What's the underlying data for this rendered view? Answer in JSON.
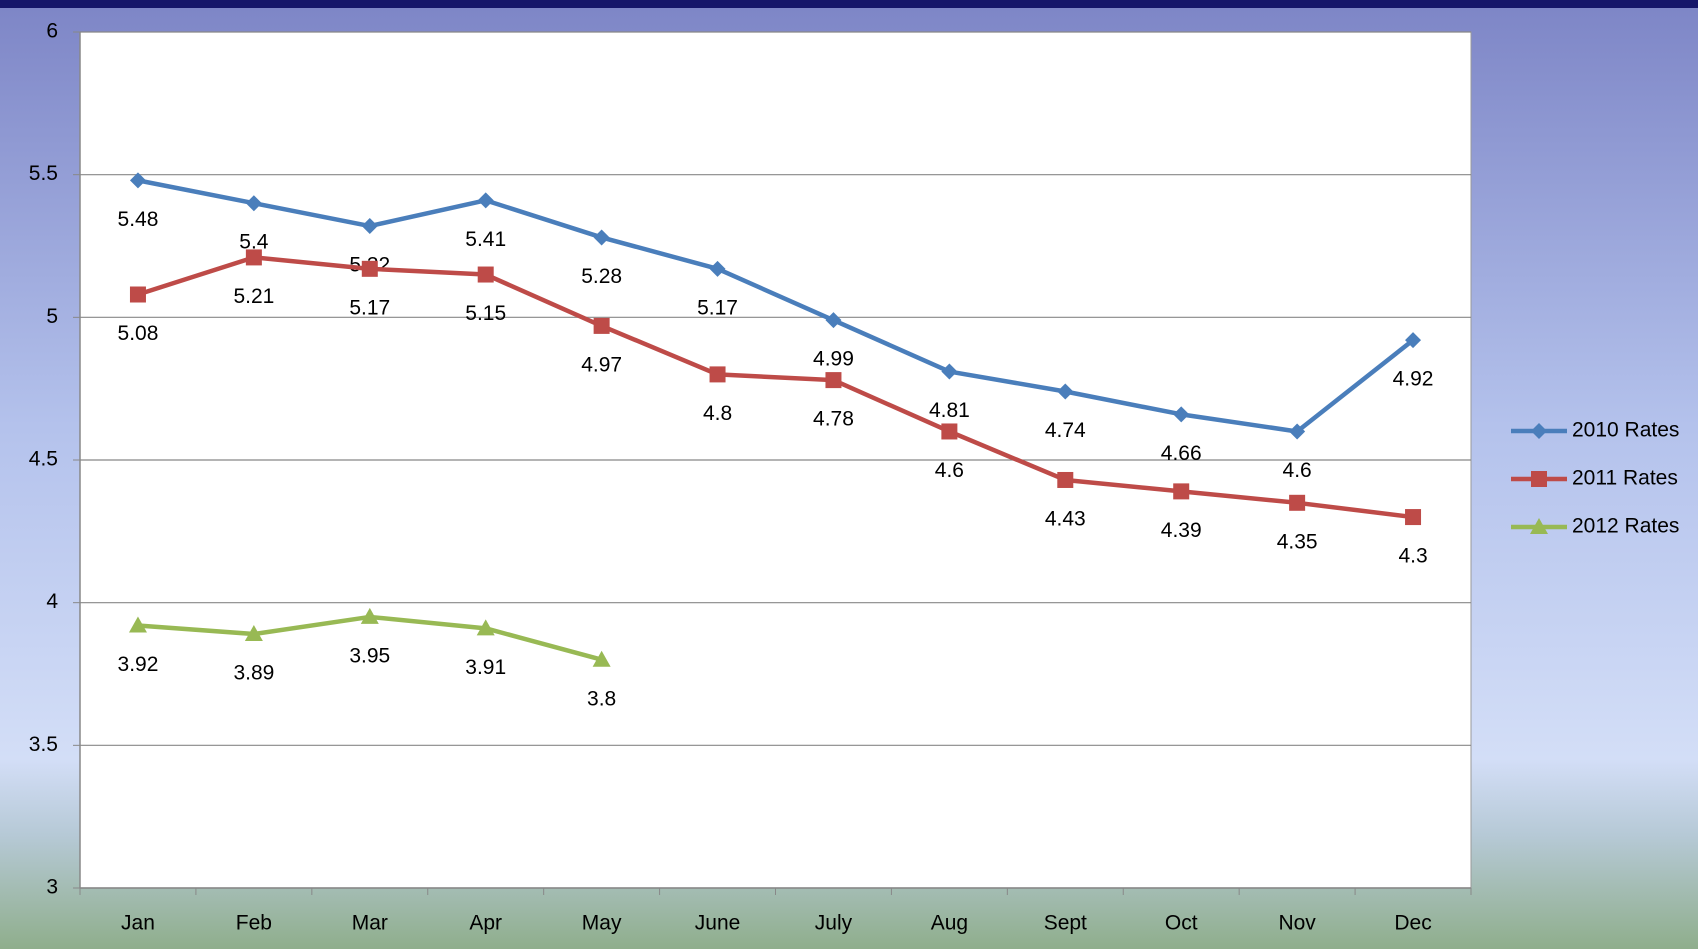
{
  "chart_data": {
    "type": "line",
    "categories": [
      "Jan",
      "Feb",
      "Mar",
      "Apr",
      "May",
      "June",
      "July",
      "Aug",
      "Sept",
      "Oct",
      "Nov",
      "Dec"
    ],
    "series": [
      {
        "name": "2010 Rates",
        "color": "#4a7ebb",
        "marker": "diamond",
        "values": [
          5.48,
          5.4,
          5.32,
          5.41,
          5.28,
          5.17,
          4.99,
          4.81,
          4.74,
          4.66,
          4.6,
          4.92
        ]
      },
      {
        "name": "2011 Rates",
        "color": "#be4b48",
        "marker": "square",
        "values": [
          5.08,
          5.21,
          5.17,
          5.15,
          4.97,
          4.8,
          4.78,
          4.6,
          4.43,
          4.39,
          4.35,
          4.3
        ]
      },
      {
        "name": "2012 Rates",
        "color": "#98b954",
        "marker": "triangle",
        "values": [
          3.92,
          3.89,
          3.95,
          3.91,
          3.8,
          null,
          null,
          null,
          null,
          null,
          null,
          null
        ]
      }
    ],
    "ylim": [
      3,
      6
    ],
    "yticks": [
      3,
      3.5,
      4,
      4.5,
      5,
      5.5,
      6
    ],
    "grid": true,
    "legend": "right"
  }
}
